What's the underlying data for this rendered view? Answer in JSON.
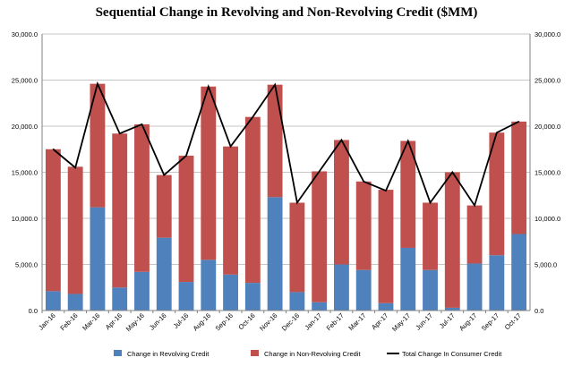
{
  "chart_data": {
    "type": "bar",
    "title": "Sequential Change in Revolving and Non-Revolving Credit ($MM)",
    "categories": [
      "Jan-16",
      "Feb-16",
      "Mar-16",
      "Apr-16",
      "May-16",
      "Jun-16",
      "Jul-16",
      "Aug-16",
      "Sep-16",
      "Oct-16",
      "Nov-16",
      "Dec-16",
      "Jan-17",
      "Feb-17",
      "Mar-17",
      "Apr-17",
      "May-17",
      "Jun-17",
      "Jul-17",
      "Aug-17",
      "Sep-17",
      "Oct-17"
    ],
    "stacked": true,
    "series": [
      {
        "name": "Change in Revolving Credit",
        "kind": "bar",
        "color": "#4f81bd",
        "values": [
          2100,
          1800,
          11200,
          2500,
          4200,
          7900,
          3100,
          5500,
          3900,
          3000,
          12300,
          2000,
          900,
          5000,
          4400,
          800,
          6800,
          4400,
          300,
          5100,
          6000,
          8300
        ]
      },
      {
        "name": "Change in Non-Revolving Credit",
        "kind": "bar",
        "color": "#c0504d",
        "values": [
          15400,
          13800,
          13400,
          16700,
          16000,
          6800,
          13700,
          18800,
          13900,
          18000,
          12200,
          9700,
          14200,
          13500,
          9600,
          12300,
          11600,
          7300,
          14700,
          6300,
          13300,
          12200
        ]
      },
      {
        "name": "Total Change In Consumer Credit",
        "kind": "line",
        "color": "#000000",
        "values": [
          17500,
          15500,
          24600,
          19200,
          20200,
          14700,
          16800,
          24300,
          17800,
          21000,
          24500,
          11700,
          15100,
          18500,
          14000,
          13000,
          18400,
          11700,
          15000,
          11400,
          19300,
          20500
        ]
      }
    ],
    "ylim": [
      0,
      30000
    ],
    "yticks": [
      "0.0",
      "5,000.0",
      "10,000.0",
      "15,000.0",
      "20,000.0",
      "25,000.0",
      "30,000.0"
    ],
    "ytick_values": [
      0,
      5000,
      10000,
      15000,
      20000,
      25000,
      30000
    ],
    "secondary_axis": true,
    "grid": true,
    "grid_color": "#c6c6c6",
    "legend_position": "bottom"
  }
}
